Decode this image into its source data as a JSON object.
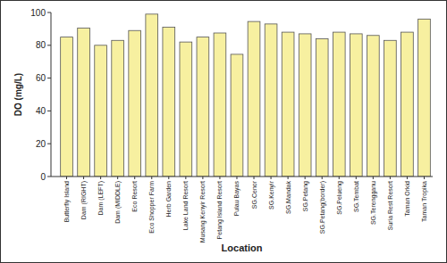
{
  "chart_data": {
    "type": "bar",
    "x_label": "Location",
    "y_label": "DO (mg/L)",
    "categories": [
      "Butterfly Island",
      "Dam (RIGHT)",
      "Dam (LEFT)",
      "Dam (MIDDLE)",
      "Eco Resort",
      "Eco Shopper Farm",
      "Herb Garden",
      "Lake Land Resort",
      "Musang Kenyir Resort",
      "Petang Island Resort",
      "Pulau Bayas",
      "SG.Cenor",
      "SG.Kenyir",
      "SG.Mandak",
      "SG.Petang",
      "SG.Petang(border)",
      "SG.Pelueng",
      "SG.Tembat",
      "SG.Terengganu",
      "Suria Rest Resort",
      "Taman Orkid",
      "Taman Tropika"
    ],
    "values": [
      85,
      90.5,
      80,
      83,
      89,
      99,
      91,
      82,
      85,
      87.5,
      74.5,
      94.5,
      93,
      88,
      87,
      84,
      88,
      87,
      86,
      83,
      88,
      96
    ],
    "color": "#f7f0a0",
    "ylim": [
      0,
      100
    ],
    "yticks": [
      0,
      20,
      40,
      60,
      80,
      100
    ],
    "grid": false
  }
}
